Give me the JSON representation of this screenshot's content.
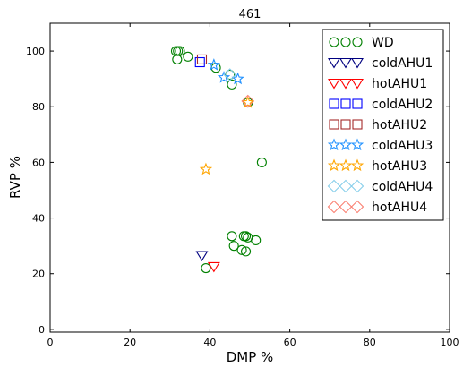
{
  "chart_data": {
    "type": "scatter",
    "title": "461",
    "xlabel": "DMP %",
    "ylabel": "RVP %",
    "xlim": [
      0,
      100
    ],
    "ylim": [
      -1,
      110
    ],
    "xticks": [
      0,
      20,
      40,
      60,
      80,
      100
    ],
    "yticks": [
      0,
      20,
      40,
      60,
      80,
      100
    ],
    "grid": false,
    "legend_position": "top-right",
    "series": [
      {
        "name": "WD",
        "marker": "circle",
        "color": "#008000",
        "x": [
          31.5,
          32.0,
          32.5,
          31.8,
          34.5,
          41.5,
          45.0,
          45.5,
          49.5,
          53.0,
          45.5,
          46.0,
          48.5,
          49.0,
          49.5,
          51.5,
          48.0,
          49.0,
          39.0
        ],
        "y": [
          100.0,
          100.0,
          100.0,
          97.0,
          98.0,
          94.0,
          91.5,
          88.0,
          81.5,
          60.0,
          33.5,
          30.0,
          33.5,
          33.5,
          33.0,
          32.0,
          28.5,
          28.0,
          22.0
        ]
      },
      {
        "name": "coldAHU1",
        "marker": "triangle-down",
        "color": "#000080",
        "x": [
          38.0
        ],
        "y": [
          26.5
        ]
      },
      {
        "name": "hotAHU1",
        "marker": "triangle-down",
        "color": "#ff0000",
        "x": [
          41.0
        ],
        "y": [
          22.5
        ]
      },
      {
        "name": "coldAHU2",
        "marker": "square",
        "color": "#0000ff",
        "x": [
          37.5
        ],
        "y": [
          96.0
        ]
      },
      {
        "name": "hotAHU2",
        "marker": "square",
        "color": "#a52a2a",
        "x": [
          38.0
        ],
        "y": [
          97.0
        ]
      },
      {
        "name": "coldAHU3",
        "marker": "star",
        "color": "#1e90ff",
        "x": [
          41.0,
          43.5,
          47.0
        ],
        "y": [
          95.0,
          90.5,
          90.0
        ]
      },
      {
        "name": "hotAHU3",
        "marker": "star",
        "color": "#ffa500",
        "x": [
          39.0,
          49.5
        ],
        "y": [
          57.5,
          81.5
        ]
      },
      {
        "name": "coldAHU4",
        "marker": "diamond",
        "color": "#87ceeb",
        "x": [
          45.0
        ],
        "y": [
          91.5
        ]
      },
      {
        "name": "hotAHU4",
        "marker": "diamond",
        "color": "#fa8072",
        "x": [
          49.5
        ],
        "y": [
          82.0
        ]
      }
    ]
  }
}
